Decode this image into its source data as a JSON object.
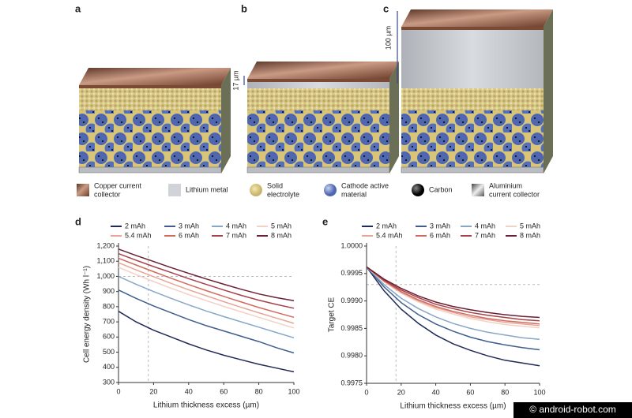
{
  "figure": {
    "panels": [
      "a",
      "b",
      "c"
    ],
    "annotations": [
      "17 µm",
      "100 µm"
    ],
    "materials": [
      [
        "Copper current",
        "collector"
      ],
      [
        "Lithium metal"
      ],
      [
        "Solid",
        "electrolyte"
      ],
      [
        "Cathode active",
        "material"
      ],
      [
        "Carbon"
      ],
      [
        "Aluminium",
        "current collector"
      ]
    ]
  },
  "watermark": "© android-robot.com",
  "chart_data": [
    {
      "type": "line",
      "panel": "d",
      "xlabel": "Lithium thickness excess (µm)",
      "ylabel": "Cell energy density (Wh l⁻¹)",
      "x": [
        0,
        10,
        20,
        30,
        40,
        50,
        60,
        70,
        80,
        90,
        100
      ],
      "xlim": [
        0,
        100
      ],
      "xticks": [
        0,
        20,
        40,
        60,
        80,
        100
      ],
      "ylim": [
        300,
        1200
      ],
      "yticks": [
        300,
        400,
        500,
        600,
        700,
        800,
        900,
        {
          "value": 1000,
          "label": "1,000"
        },
        {
          "value": 1100,
          "label": "1,100"
        },
        {
          "value": 1200,
          "label": "1,200"
        }
      ],
      "reference_x": 17,
      "reference_y": 1000,
      "series": [
        {
          "name": "2 mAh",
          "color": "#1f2a58",
          "values": [
            770,
            700,
            645,
            600,
            555,
            515,
            480,
            450,
            420,
            395,
            370
          ]
        },
        {
          "name": "3 mAh",
          "color": "#3f5d8e",
          "values": [
            910,
            855,
            805,
            760,
            715,
            675,
            640,
            605,
            570,
            530,
            495
          ]
        },
        {
          "name": "4 mAh",
          "color": "#86a7c8",
          "values": [
            1000,
            948,
            900,
            855,
            812,
            772,
            735,
            700,
            665,
            630,
            595
          ]
        },
        {
          "name": "5 mAh",
          "color": "#f2d2c6",
          "values": [
            1060,
            1012,
            966,
            922,
            880,
            840,
            802,
            766,
            730,
            695,
            660
          ]
        },
        {
          "name": "5.4 mAh",
          "color": "#e8a596",
          "values": [
            1090,
            1043,
            998,
            954,
            912,
            872,
            833,
            796,
            760,
            725,
            690
          ]
        },
        {
          "name": "6 mAh",
          "color": "#d06b5c",
          "values": [
            1120,
            1075,
            1031,
            988,
            946,
            906,
            868,
            831,
            795,
            762,
            730
          ]
        },
        {
          "name": "7 mAh",
          "color": "#a8404a",
          "values": [
            1150,
            1107,
            1065,
            1025,
            985,
            947,
            910,
            875,
            843,
            815,
            790
          ]
        },
        {
          "name": "8 mAh",
          "color": "#6a2032",
          "values": [
            1180,
            1138,
            1098,
            1058,
            1020,
            983,
            948,
            915,
            884,
            860,
            840
          ]
        }
      ]
    },
    {
      "type": "line",
      "panel": "e",
      "xlabel": "Lithium thickness excess (µm)",
      "ylabel": "Target CE",
      "x": [
        0,
        10,
        20,
        30,
        40,
        50,
        60,
        70,
        80,
        90,
        100
      ],
      "xlim": [
        0,
        100
      ],
      "xticks": [
        0,
        20,
        40,
        60,
        80,
        100
      ],
      "ylim": [
        0.9975,
        1
      ],
      "yticks": [
        0.9975,
        {
          "value": 0.998,
          "label": "0.9980"
        },
        0.9985,
        {
          "value": 0.999,
          "label": "0.9990"
        },
        0.9995,
        {
          "value": 1,
          "label": "1.0000"
        }
      ],
      "reference_x": 17,
      "reference_y": 0.9993,
      "series": [
        {
          "name": "2 mAh",
          "color": "#1f2a58",
          "values": [
            0.99962,
            0.99919,
            0.99885,
            0.99859,
            0.99838,
            0.99822,
            0.9981,
            0.998,
            0.99792,
            0.99787,
            0.99782
          ]
        },
        {
          "name": "3 mAh",
          "color": "#3f5d8e",
          "values": [
            0.99962,
            0.99926,
            0.99897,
            0.99875,
            0.99858,
            0.99845,
            0.99834,
            0.99826,
            0.9982,
            0.99815,
            0.99811
          ]
        },
        {
          "name": "4 mAh",
          "color": "#86a7c8",
          "values": [
            0.99962,
            0.9993,
            0.99905,
            0.99886,
            0.99871,
            0.99859,
            0.9985,
            0.99843,
            0.99838,
            0.99833,
            0.9983
          ]
        },
        {
          "name": "5 mAh",
          "color": "#f2d2c6",
          "values": [
            0.99962,
            0.99935,
            0.99914,
            0.99898,
            0.99885,
            0.99876,
            0.99868,
            0.99862,
            0.99857,
            0.99854,
            0.99851
          ]
        },
        {
          "name": "5.4 mAh",
          "color": "#e8a596",
          "values": [
            0.99962,
            0.99936,
            0.99916,
            0.999,
            0.99888,
            0.99879,
            0.99871,
            0.99866,
            0.99861,
            0.99858,
            0.99855
          ]
        },
        {
          "name": "6 mAh",
          "color": "#d06b5c",
          "values": [
            0.99962,
            0.99937,
            0.99917,
            0.99902,
            0.9989,
            0.99881,
            0.99874,
            0.99868,
            0.99864,
            0.99861,
            0.99858
          ]
        },
        {
          "name": "7 mAh",
          "color": "#a8404a",
          "values": [
            0.99962,
            0.99938,
            0.9992,
            0.99906,
            0.99894,
            0.99886,
            0.99879,
            0.99874,
            0.9987,
            0.99866,
            0.99864
          ]
        },
        {
          "name": "8 mAh",
          "color": "#6a2032",
          "values": [
            0.99962,
            0.9994,
            0.99923,
            0.99909,
            0.99898,
            0.9989,
            0.99884,
            0.99879,
            0.99875,
            0.99872,
            0.9987
          ]
        }
      ]
    }
  ]
}
